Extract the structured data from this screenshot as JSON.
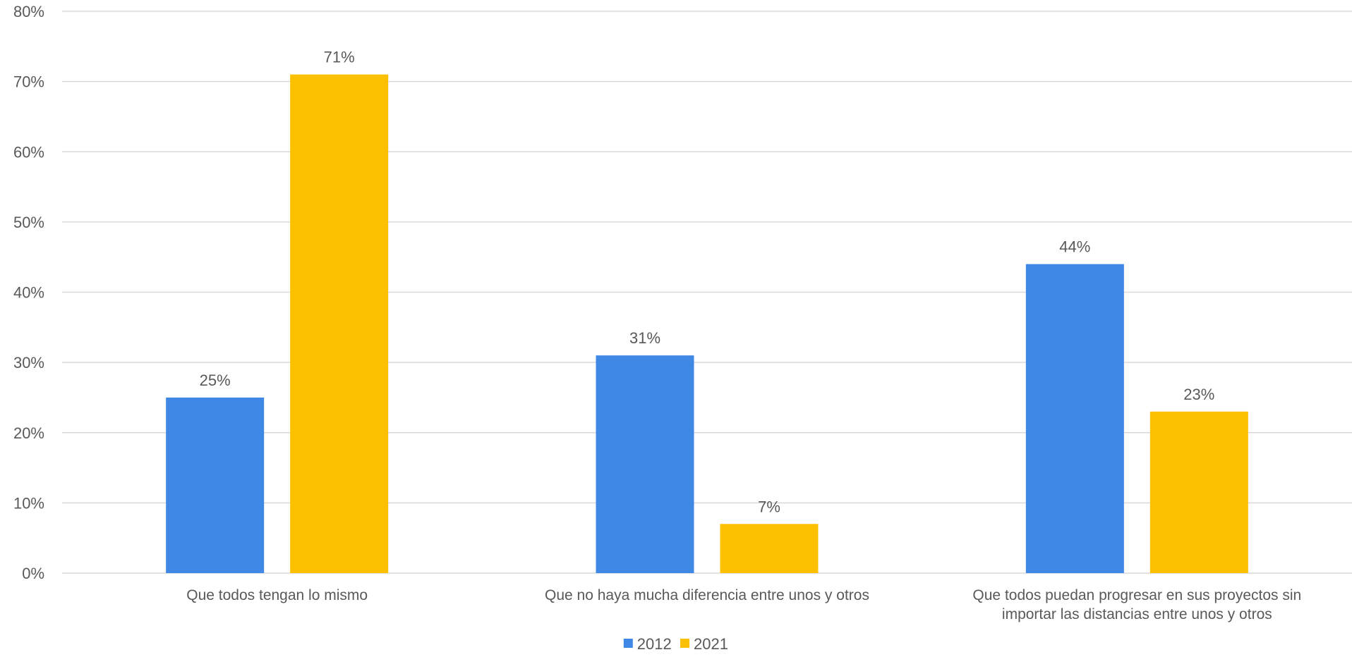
{
  "chart_data": {
    "type": "bar",
    "categories": [
      [
        "Que todos tengan lo mismo"
      ],
      [
        "Que no haya mucha diferencia entre unos y otros"
      ],
      [
        "Que todos puedan progresar en sus proyectos sin",
        "importar las distancias entre unos y otros"
      ]
    ],
    "series": [
      {
        "name": "2012",
        "color": "#3f88e5",
        "values": [
          25,
          31,
          44
        ]
      },
      {
        "name": "2021",
        "color": "#fdc000",
        "values": [
          71,
          7,
          23
        ]
      }
    ],
    "ylim": [
      0,
      80
    ],
    "yticks": [
      0,
      10,
      20,
      30,
      40,
      50,
      60,
      70,
      80
    ],
    "value_format": "%",
    "grid": true,
    "legend": "bottom-center",
    "title": "",
    "xlabel": "",
    "ylabel": ""
  }
}
